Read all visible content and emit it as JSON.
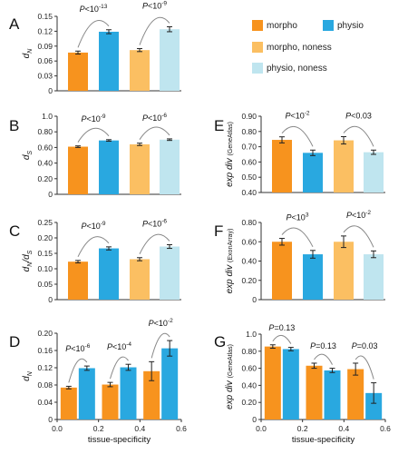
{
  "colors": {
    "morpho": "#f7931e",
    "physio": "#29a8e0",
    "morpho_noness": "#fbbf62",
    "physio_noness": "#bfe5ef",
    "bracket": "#888888",
    "axis": "#333333"
  },
  "legend": [
    {
      "label": "morpho",
      "color_key": "morpho"
    },
    {
      "label": "physio",
      "color_key": "physio"
    },
    {
      "label": "morpho, noness",
      "color_key": "morpho_noness"
    },
    {
      "label": "physio, noness",
      "color_key": "physio_noness"
    }
  ],
  "chart_data": [
    {
      "panel": "A",
      "type": "bar",
      "ylabel_main": "d",
      "ylabel_sub": "N",
      "ylim": [
        0,
        0.15
      ],
      "yticks": [
        "0",
        "0.03",
        "0.06",
        "0.09",
        "0.12",
        "0.15"
      ],
      "series": [
        {
          "name": "morpho",
          "values": [
            0.077
          ],
          "err": [
            0.003
          ]
        },
        {
          "name": "physio",
          "values": [
            0.119
          ],
          "err": [
            0.004
          ]
        },
        {
          "name": "morpho, noness",
          "values": [
            0.082
          ],
          "err": [
            0.003
          ]
        },
        {
          "name": "physio, noness",
          "values": [
            0.124
          ],
          "err": [
            0.005
          ]
        }
      ],
      "annotations": [
        {
          "prefix": "P<10",
          "exp": "-13",
          "between": [
            0,
            1
          ]
        },
        {
          "prefix": "P<10",
          "exp": "-9",
          "between": [
            2,
            3
          ]
        }
      ]
    },
    {
      "panel": "B",
      "type": "bar",
      "ylabel_main": "d",
      "ylabel_sub": "S",
      "ylim": [
        0,
        1.0
      ],
      "yticks": [
        "0",
        "0.20",
        "0.40",
        "0.60",
        "0.80",
        "1.0"
      ],
      "series": [
        {
          "name": "morpho",
          "values": [
            0.61
          ],
          "err": [
            0.01
          ]
        },
        {
          "name": "physio",
          "values": [
            0.69
          ],
          "err": [
            0.01
          ]
        },
        {
          "name": "morpho, noness",
          "values": [
            0.64
          ],
          "err": [
            0.015
          ]
        },
        {
          "name": "physio, noness",
          "values": [
            0.7
          ],
          "err": [
            0.01
          ]
        }
      ],
      "annotations": [
        {
          "prefix": "P<10",
          "exp": "-9",
          "between": [
            0,
            1
          ]
        },
        {
          "prefix": "P<10",
          "exp": "-6",
          "between": [
            2,
            3
          ]
        }
      ]
    },
    {
      "panel": "C",
      "type": "bar",
      "ylabel_main": "d",
      "ylabel_sub": "N",
      "ylabel_main2": "/d",
      "ylabel_sub2": "S",
      "ylim": [
        0,
        0.25
      ],
      "yticks": [
        "0",
        "0.05",
        "0.10",
        "0.15",
        "0.20",
        "0.25"
      ],
      "series": [
        {
          "name": "morpho",
          "values": [
            0.123
          ],
          "err": [
            0.004
          ]
        },
        {
          "name": "physio",
          "values": [
            0.166
          ],
          "err": [
            0.005
          ]
        },
        {
          "name": "morpho, noness",
          "values": [
            0.131
          ],
          "err": [
            0.005
          ]
        },
        {
          "name": "physio, noness",
          "values": [
            0.172
          ],
          "err": [
            0.006
          ]
        }
      ],
      "annotations": [
        {
          "prefix": "P<10",
          "exp": "-9",
          "between": [
            0,
            1
          ]
        },
        {
          "prefix": "P<10",
          "exp": "-6",
          "between": [
            2,
            3
          ]
        }
      ]
    },
    {
      "panel": "D",
      "type": "bar",
      "ylabel_main": "d",
      "ylabel_sub": "N",
      "xlabel": "tissue-specificity",
      "ylim": [
        0,
        0.2
      ],
      "yticks": [
        "0",
        "0.04",
        "0.08",
        "0.12",
        "0.16",
        "0.20"
      ],
      "xlim": [
        0,
        0.6
      ],
      "xticks": [
        "0.0",
        "0.2",
        "0.4",
        "0.6"
      ],
      "x": [
        0.1,
        0.3,
        0.5
      ],
      "series": [
        {
          "name": "morpho",
          "values": [
            0.074,
            0.081,
            0.112
          ],
          "err": [
            0.003,
            0.005,
            0.022
          ]
        },
        {
          "name": "physio",
          "values": [
            0.119,
            0.121,
            0.165
          ],
          "err": [
            0.005,
            0.007,
            0.018
          ]
        }
      ],
      "annotations": [
        {
          "prefix": "P<10",
          "exp": "-6",
          "group": 0
        },
        {
          "prefix": "P<10",
          "exp": "-4",
          "group": 1
        },
        {
          "prefix": "P<10",
          "exp": "-2",
          "group": 2
        }
      ]
    },
    {
      "panel": "E",
      "type": "bar",
      "ylabel": "exp div",
      "ylabel_paren": "(GeneAtlas)",
      "ylim": [
        0.4,
        0.9
      ],
      "yticks": [
        "0.40",
        "0.50",
        "0.60",
        "0.70",
        "0.80",
        "0.90"
      ],
      "series": [
        {
          "name": "morpho",
          "values": [
            0.745
          ],
          "err": [
            0.02
          ]
        },
        {
          "name": "physio",
          "values": [
            0.66
          ],
          "err": [
            0.018
          ]
        },
        {
          "name": "morpho, noness",
          "values": [
            0.742
          ],
          "err": [
            0.024
          ]
        },
        {
          "name": "physio, noness",
          "values": [
            0.664
          ],
          "err": [
            0.014
          ]
        }
      ],
      "annotations": [
        {
          "prefix": "P<10",
          "exp": "-2",
          "between": [
            0,
            1
          ]
        },
        {
          "prefix": "P<0.03",
          "exp": "",
          "between": [
            2,
            3
          ]
        }
      ]
    },
    {
      "panel": "F",
      "type": "bar",
      "ylabel": "exp div",
      "ylabel_paren": "(ExonArray)",
      "ylim": [
        0,
        0.8
      ],
      "yticks": [
        "0",
        "0.20",
        "0.40",
        "0.60",
        "0.80"
      ],
      "series": [
        {
          "name": "morpho",
          "values": [
            0.6
          ],
          "err": [
            0.035
          ]
        },
        {
          "name": "physio",
          "values": [
            0.47
          ],
          "err": [
            0.04
          ]
        },
        {
          "name": "morpho, noness",
          "values": [
            0.6
          ],
          "err": [
            0.06
          ]
        },
        {
          "name": "physio, noness",
          "values": [
            0.47
          ],
          "err": [
            0.035
          ]
        }
      ],
      "annotations": [
        {
          "prefix": "P<10",
          "exp": "3",
          "between": [
            0,
            1
          ]
        },
        {
          "prefix": "P<10",
          "exp": "-2",
          "between": [
            2,
            3
          ]
        }
      ]
    },
    {
      "panel": "G",
      "type": "bar",
      "ylabel": "exp div",
      "ylabel_paren": "(GeneAtlas)",
      "xlabel": "tissue-specificity",
      "ylim": [
        0,
        1.0
      ],
      "yticks": [
        "0",
        "0.20",
        "0.40",
        "0.60",
        "0.80",
        "1.0"
      ],
      "xlim": [
        0,
        0.6
      ],
      "xticks": [
        "0.0",
        "0.2",
        "0.4",
        "0.6"
      ],
      "x": [
        0.1,
        0.3,
        0.5
      ],
      "series": [
        {
          "name": "morpho",
          "values": [
            0.855,
            0.63,
            0.59
          ],
          "err": [
            0.02,
            0.03,
            0.07
          ]
        },
        {
          "name": "physio",
          "values": [
            0.825,
            0.575,
            0.31
          ],
          "err": [
            0.02,
            0.025,
            0.12
          ]
        }
      ],
      "annotations": [
        {
          "prefix": "P=0.13",
          "exp": "",
          "group": 0
        },
        {
          "prefix": "P=0.13",
          "exp": "",
          "group": 1
        },
        {
          "prefix": "P=0.03",
          "exp": "",
          "group": 2
        }
      ]
    }
  ]
}
